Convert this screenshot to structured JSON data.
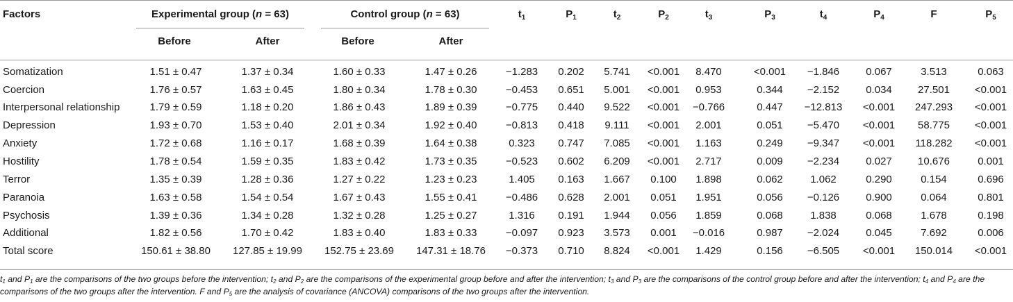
{
  "table": {
    "header": {
      "factors": "Factors",
      "experimental_prefix": "Experimental group (",
      "control_prefix": "Control group (",
      "n_symbol": "n",
      "n_suffix": " = 63)",
      "before": "Before",
      "after": "After",
      "stats": [
        {
          "base": "t",
          "sub": "1"
        },
        {
          "base": "P",
          "sub": "1"
        },
        {
          "base": "t",
          "sub": "2"
        },
        {
          "base": "P",
          "sub": "2"
        },
        {
          "base": "t",
          "sub": "3"
        },
        {
          "base": "P",
          "sub": "3"
        },
        {
          "base": "t",
          "sub": "4"
        },
        {
          "base": "P",
          "sub": "4"
        },
        {
          "base": "F",
          "sub": ""
        },
        {
          "base": "P",
          "sub": "5"
        }
      ]
    },
    "rows": [
      {
        "factor": "Somatization",
        "values": [
          "1.51 ± 0.47",
          "1.37 ± 0.34",
          "1.60 ± 0.33",
          "1.47 ± 0.26",
          "−1.283",
          "0.202",
          "5.741",
          "<0.001",
          "8.470",
          "<0.001",
          "−1.846",
          "0.067",
          "3.513",
          "0.063"
        ]
      },
      {
        "factor": "Coercion",
        "values": [
          "1.76 ± 0.57",
          "1.63 ± 0.45",
          "1.80 ± 0.34",
          "1.78 ± 0.30",
          "−0.453",
          "0.651",
          "5.001",
          "<0.001",
          "0.953",
          "0.344",
          "−2.152",
          "0.034",
          "27.501",
          "<0.001"
        ]
      },
      {
        "factor": "Interpersonal relationship",
        "values": [
          "1.79 ± 0.59",
          "1.18 ± 0.20",
          "1.86 ± 0.43",
          "1.89 ± 0.39",
          "−0.775",
          "0.440",
          "9.522",
          "<0.001",
          "−0.766",
          "0.447",
          "−12.813",
          "<0.001",
          "247.293",
          "<0.001"
        ]
      },
      {
        "factor": "Depression",
        "values": [
          "1.93 ± 0.70",
          "1.53 ± 0.40",
          "2.01 ± 0.34",
          "1.92 ± 0.40",
          "−0.813",
          "0.418",
          "9.111",
          "<0.001",
          "2.001",
          "0.051",
          "−5.470",
          "<0.001",
          "58.775",
          "<0.001"
        ]
      },
      {
        "factor": "Anxiety",
        "values": [
          "1.72 ± 0.68",
          "1.16 ± 0.17",
          "1.68 ± 0.39",
          "1.64 ± 0.38",
          "0.323",
          "0.747",
          "7.085",
          "<0.001",
          "1.163",
          "0.249",
          "−9.347",
          "<0.001",
          "118.282",
          "<0.001"
        ]
      },
      {
        "factor": "Hostility",
        "values": [
          "1.78 ± 0.54",
          "1.59 ± 0.35",
          "1.83 ± 0.42",
          "1.73 ± 0.35",
          "−0.523",
          "0.602",
          "6.209",
          "<0.001",
          "2.717",
          "0.009",
          "−2.234",
          "0.027",
          "10.676",
          "0.001"
        ]
      },
      {
        "factor": "Terror",
        "values": [
          "1.35 ± 0.39",
          "1.28 ± 0.36",
          "1.27 ± 0.22",
          "1.23 ± 0.23",
          "1.405",
          "0.163",
          "1.667",
          "0.100",
          "1.898",
          "0.062",
          "1.062",
          "0.290",
          "0.154",
          "0.696"
        ]
      },
      {
        "factor": "Paranoia",
        "values": [
          "1.63 ± 0.58",
          "1.54 ± 0.54",
          "1.67 ± 0.43",
          "1.55 ± 0.41",
          "−0.486",
          "0.628",
          "2.001",
          "0.051",
          "1.951",
          "0.056",
          "−0.126",
          "0.900",
          "0.064",
          "0.801"
        ]
      },
      {
        "factor": "Psychosis",
        "values": [
          "1.39 ± 0.36",
          "1.34 ± 0.28",
          "1.32 ± 0.28",
          "1.25 ± 0.27",
          "1.316",
          "0.191",
          "1.944",
          "0.056",
          "1.859",
          "0.068",
          "1.838",
          "0.068",
          "1.678",
          "0.198"
        ]
      },
      {
        "factor": "Additional",
        "values": [
          "1.82 ± 0.56",
          "1.70 ± 0.42",
          "1.83 ± 0.40",
          "1.83 ± 0.33",
          "−0.097",
          "0.923",
          "3.573",
          "0.001",
          "−0.016",
          "0.987",
          "−2.024",
          "0.045",
          "7.692",
          "0.006"
        ]
      },
      {
        "factor": "Total score",
        "values": [
          "150.61 ± 38.80",
          "127.85 ± 19.99",
          "152.75 ± 23.69",
          "147.31 ± 18.76",
          "−0.373",
          "0.710",
          "8.824",
          "<0.001",
          "1.429",
          "0.156",
          "−6.505",
          "<0.001",
          "150.014",
          "<0.001"
        ]
      }
    ]
  },
  "footnote": {
    "segments": [
      {
        "text": "t",
        "sub": false
      },
      {
        "text": "1",
        "sub": true
      },
      {
        "text": " and P",
        "sub": false
      },
      {
        "text": "1",
        "sub": true
      },
      {
        "text": " are the comparisons of the two groups before the intervention; t",
        "sub": false
      },
      {
        "text": "2",
        "sub": true
      },
      {
        "text": " and P",
        "sub": false
      },
      {
        "text": "2",
        "sub": true
      },
      {
        "text": " are the comparisons of the experimental group before and after the intervention; t",
        "sub": false
      },
      {
        "text": "3",
        "sub": true
      },
      {
        "text": " and P",
        "sub": false
      },
      {
        "text": "3",
        "sub": true
      },
      {
        "text": " are the comparisons of the control group before and after the intervention; t",
        "sub": false
      },
      {
        "text": "4",
        "sub": true
      },
      {
        "text": " and P",
        "sub": false
      },
      {
        "text": "4",
        "sub": true
      },
      {
        "text": " are the comparisons of the two groups after the intervention. F and P",
        "sub": false
      },
      {
        "text": "5",
        "sub": true
      },
      {
        "text": " are the analysis of covariance (ANCOVA) comparisons of the two groups after the intervention.",
        "sub": false
      }
    ]
  }
}
